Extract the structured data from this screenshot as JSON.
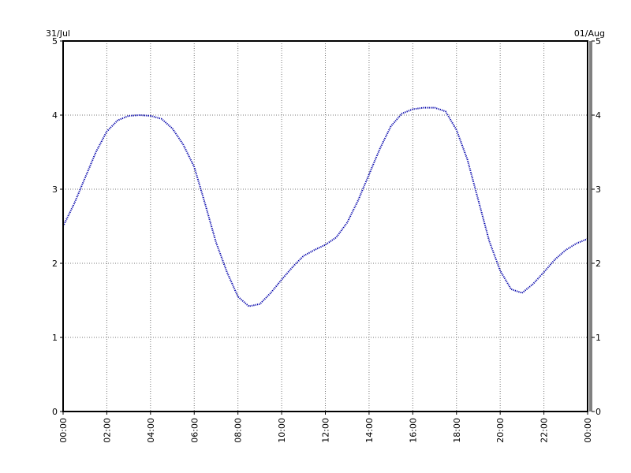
{
  "chart_data": {
    "type": "line",
    "title": "",
    "xlabel": "",
    "ylabel": "",
    "date_labels": {
      "left": "31/Jul",
      "right": "01/Aug"
    },
    "x_ticks": [
      "00:00",
      "02:00",
      "04:00",
      "06:00",
      "08:00",
      "10:00",
      "12:00",
      "14:00",
      "16:00",
      "18:00",
      "20:00",
      "22:00",
      "00:00"
    ],
    "y_ticks": [
      "0",
      "1",
      "2",
      "3",
      "4",
      "5"
    ],
    "xlim": [
      0,
      24
    ],
    "ylim": [
      0,
      5
    ],
    "grid": true,
    "grid_style": "dotted",
    "line_color": "#0000aa",
    "line_style": "dotted",
    "series": [
      {
        "x": [
          0,
          0.5,
          1,
          1.5,
          2,
          2.5,
          3,
          3.5,
          4,
          4.5,
          5,
          5.5,
          6,
          6.5,
          7,
          7.5,
          8,
          8.5,
          9,
          9.5,
          10,
          10.5,
          11,
          11.5,
          12,
          12.5,
          13,
          13.5,
          14,
          14.5,
          15,
          15.5,
          16,
          16.5,
          17,
          17.5,
          18,
          18.5,
          19,
          19.5,
          20,
          20.5,
          21,
          21.5,
          22,
          22.5,
          23,
          23.5,
          24
        ],
        "y": [
          2.5,
          2.8,
          3.15,
          3.5,
          3.78,
          3.93,
          3.99,
          4.0,
          3.99,
          3.95,
          3.82,
          3.6,
          3.3,
          2.8,
          2.28,
          1.88,
          1.55,
          1.42,
          1.45,
          1.6,
          1.78,
          1.95,
          2.1,
          2.18,
          2.25,
          2.35,
          2.55,
          2.85,
          3.2,
          3.55,
          3.85,
          4.02,
          4.08,
          4.1,
          4.1,
          4.05,
          3.8,
          3.4,
          2.85,
          2.3,
          1.9,
          1.65,
          1.6,
          1.72,
          1.88,
          2.05,
          2.18,
          2.27,
          2.33
        ]
      }
    ]
  }
}
